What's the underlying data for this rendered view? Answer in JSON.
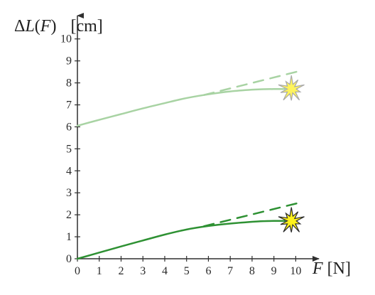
{
  "chart_data": {
    "type": "line",
    "title": "",
    "xlabel": "F [N]",
    "ylabel": "ΔL(F) [cm]",
    "xlim": [
      0,
      10.8
    ],
    "ylim": [
      0,
      10.8
    ],
    "x_ticks": [
      0,
      1,
      2,
      3,
      4,
      5,
      6,
      7,
      8,
      9,
      10
    ],
    "y_ticks": [
      0,
      1,
      2,
      3,
      4,
      5,
      6,
      7,
      8,
      9,
      10
    ],
    "grid": false,
    "legend": "none",
    "series": [
      {
        "style": "solid",
        "color": "#a8d3a3",
        "x": [
          0,
          1,
          2,
          3,
          4,
          5,
          6,
          7,
          8,
          8.5,
          9,
          9.5
        ],
        "y": [
          6.05,
          6.32,
          6.58,
          6.84,
          7.08,
          7.31,
          7.48,
          7.61,
          7.69,
          7.71,
          7.72,
          7.72
        ]
      },
      {
        "style": "dashed",
        "color": "#a8d3a3",
        "x": [
          5.8,
          10.3
        ],
        "y": [
          7.45,
          8.57
        ]
      },
      {
        "style": "solid",
        "color": "#2e9133",
        "x": [
          0,
          1,
          2,
          3,
          4,
          5,
          6,
          7,
          8,
          8.5,
          9,
          9.5
        ],
        "y": [
          0.0,
          0.28,
          0.56,
          0.83,
          1.1,
          1.33,
          1.49,
          1.6,
          1.68,
          1.71,
          1.72,
          1.72
        ]
      },
      {
        "style": "dashed",
        "color": "#2e9133",
        "x": [
          5.8,
          10.3
        ],
        "y": [
          1.48,
          2.58
        ]
      }
    ],
    "annotations": [
      {
        "type": "burst-icon",
        "x": 9.8,
        "y": 7.72,
        "fill": "#fff45c",
        "stroke": "#a8a8a8"
      },
      {
        "type": "burst-icon",
        "x": 9.8,
        "y": 1.72,
        "fill": "#fff21a",
        "stroke": "#2a2a2a"
      }
    ]
  },
  "ylabel": {
    "delta": "Δ",
    "var": "L",
    "open": "(",
    "arg": "F",
    "close": ")",
    "unit": "[cm]"
  },
  "xlabel": {
    "var": "F",
    "unit": "[N]"
  },
  "colors": {
    "axis": "#2f2f2f",
    "light_green": "#a8d3a3",
    "dark_green": "#2e9133"
  }
}
